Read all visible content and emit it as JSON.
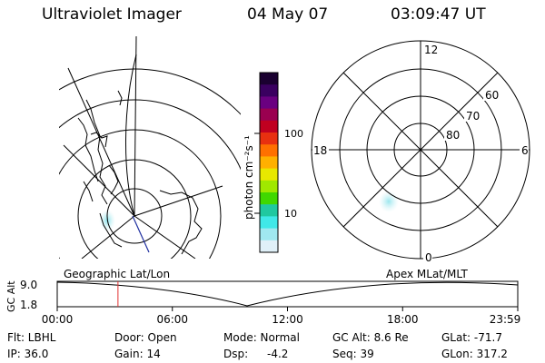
{
  "header": {
    "title": "Ultraviolet Imager",
    "date": "04 May 07",
    "time": "03:09:47 UT"
  },
  "colorbar": {
    "label": "photon cm⁻²s⁻¹",
    "ticks": [
      "100",
      "10"
    ],
    "scale": "log",
    "colors": [
      "#1a0030",
      "#3a0060",
      "#6a0080",
      "#9a0050",
      "#c00020",
      "#e83010",
      "#ff7000",
      "#ffb000",
      "#e8e800",
      "#a0e800",
      "#40d800",
      "#20c8a0",
      "#40e8e8",
      "#a0e8f0",
      "#e0f0f8"
    ]
  },
  "polar": {
    "mlt_labels": {
      "top": "12",
      "left": "18",
      "right": "6",
      "bottom": "0"
    },
    "lat_labels": [
      "60",
      "70",
      "80"
    ]
  },
  "timeline": {
    "y_axis_label": "GC Alt",
    "y_ticks": [
      "9.0",
      "1.8"
    ],
    "left_caption": "Geographic Lat/Lon",
    "right_caption": "Apex  MLat/MLT",
    "x_ticks": [
      "00:00",
      "06:00",
      "12:00",
      "18:00",
      "23:59"
    ],
    "current_time_fraction": 0.1319
  },
  "info": {
    "filter": "Flt: LBHL",
    "ip": "IP: 36.0",
    "door": "Door: Open",
    "gain": "Gain: 14",
    "mode": "Mode: Normal",
    "dsp_label": "Dsp:",
    "dsp_value": "-4.2",
    "gc_alt": "GC Alt: 8.6 Re",
    "seq": "Seq: 39",
    "glat": "GLat: -71.7",
    "glon": "GLon: 317.2"
  }
}
